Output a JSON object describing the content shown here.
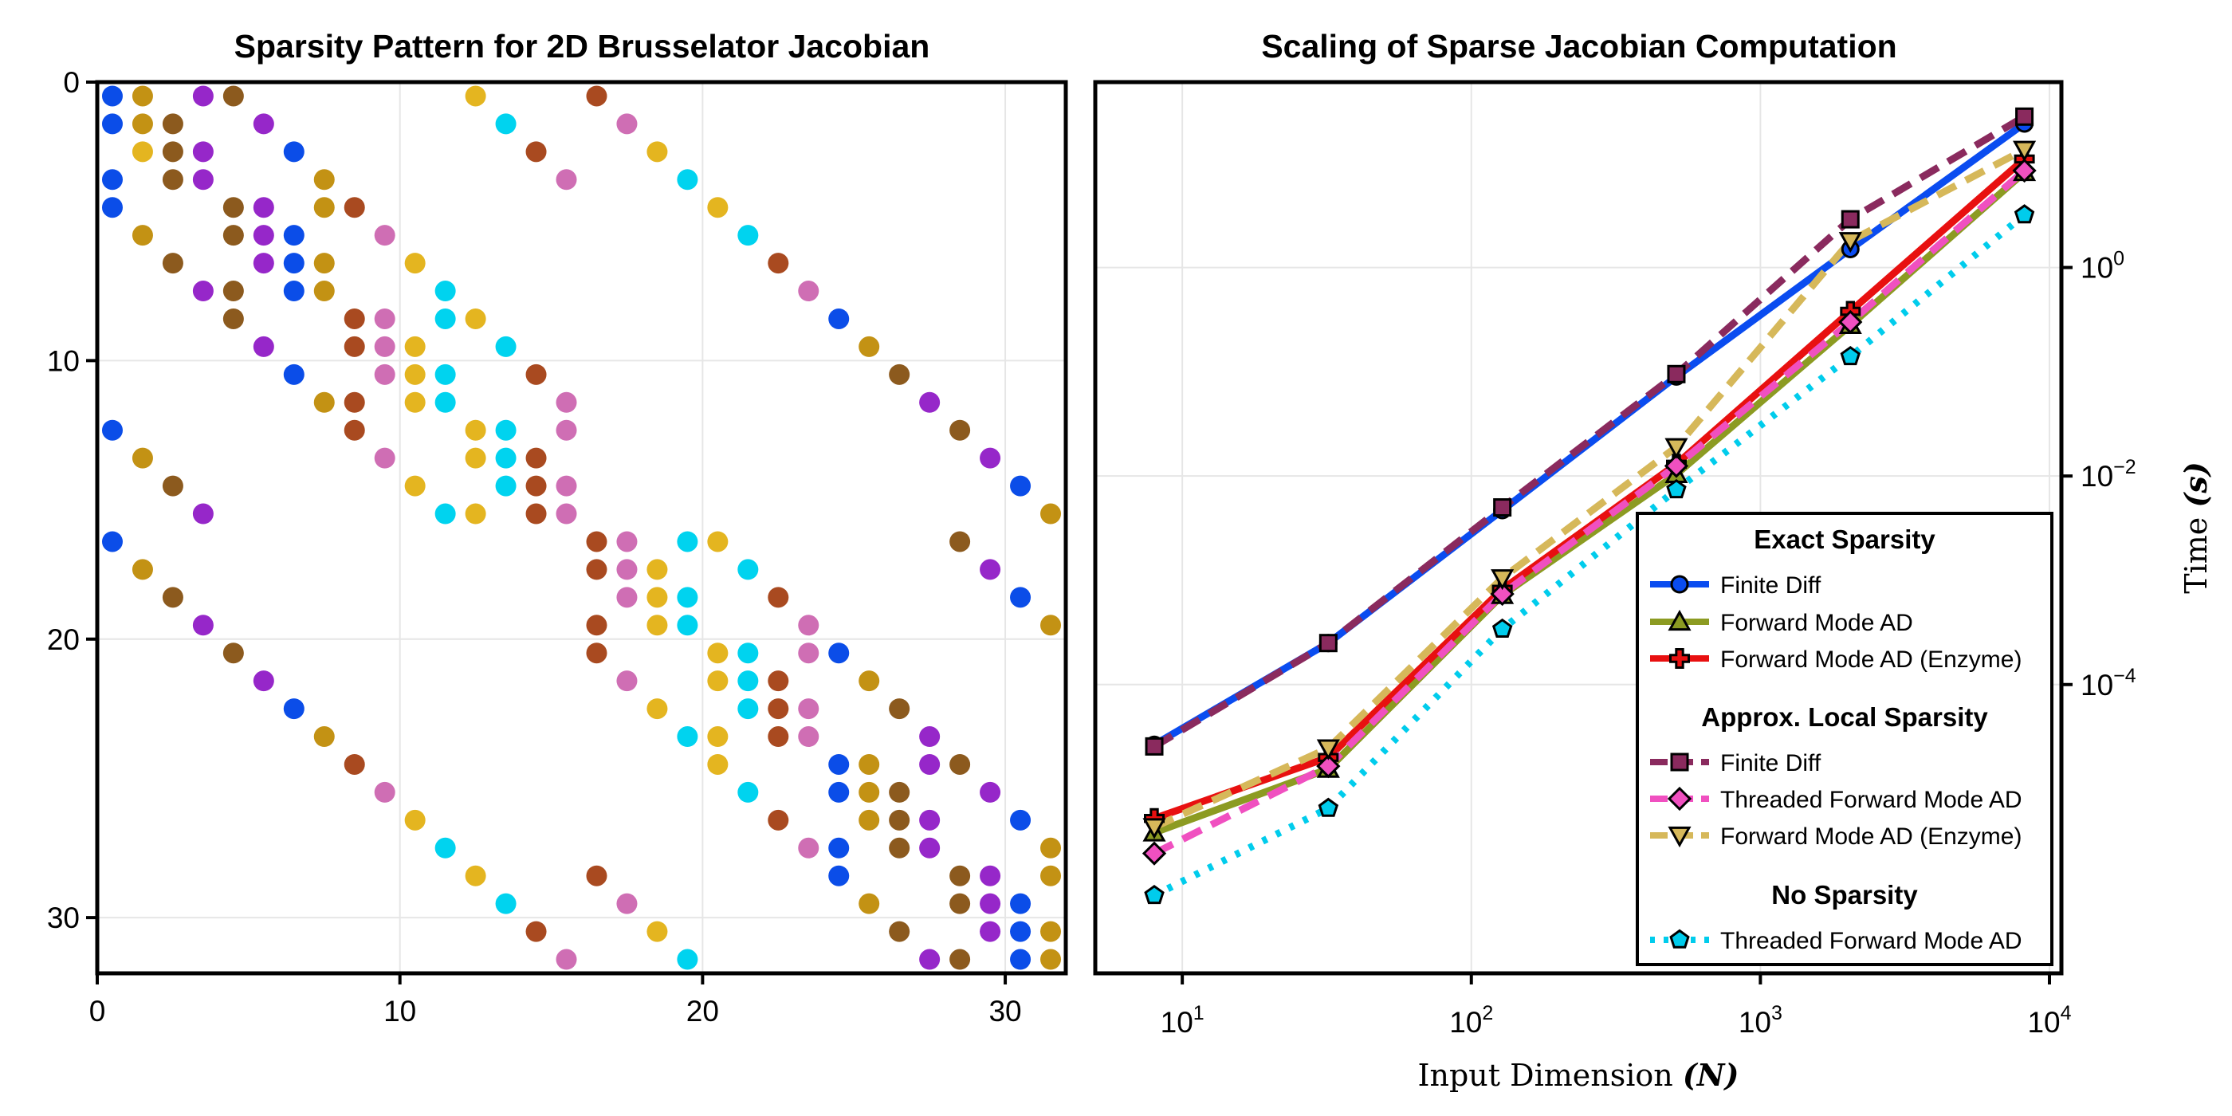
{
  "chart_data": [
    {
      "type": "scatter",
      "title": "Sparsity Pattern for 2D Brusselator Jacobian",
      "xlim": [
        0,
        32
      ],
      "ylim": [
        32,
        0
      ],
      "xticks": [
        "0",
        "10",
        "20",
        "30"
      ],
      "yticks": [
        "0",
        "10",
        "20",
        "30"
      ],
      "colors": [
        "#0b4de8",
        "#c39214",
        "#8c5a1e",
        "#9627c9",
        "#a94a20",
        "#cf6eb4",
        "#e4b520",
        "#00d3ef"
      ],
      "note": "points are [column, row, colorIndex]",
      "points": [
        [
          0,
          0,
          0
        ],
        [
          1,
          0,
          1
        ],
        [
          3,
          0,
          3
        ],
        [
          4,
          0,
          2
        ],
        [
          12,
          0,
          6
        ],
        [
          16,
          0,
          4
        ],
        [
          0,
          1,
          0
        ],
        [
          1,
          1,
          1
        ],
        [
          2,
          1,
          2
        ],
        [
          5,
          1,
          3
        ],
        [
          13,
          1,
          7
        ],
        [
          17,
          1,
          5
        ],
        [
          1,
          2,
          6
        ],
        [
          2,
          2,
          2
        ],
        [
          3,
          2,
          3
        ],
        [
          6,
          2,
          0
        ],
        [
          14,
          2,
          4
        ],
        [
          18,
          2,
          6
        ],
        [
          0,
          3,
          0
        ],
        [
          2,
          3,
          2
        ],
        [
          3,
          3,
          3
        ],
        [
          7,
          3,
          1
        ],
        [
          15,
          3,
          5
        ],
        [
          19,
          3,
          7
        ],
        [
          0,
          4,
          0
        ],
        [
          4,
          4,
          2
        ],
        [
          5,
          4,
          3
        ],
        [
          7,
          4,
          1
        ],
        [
          8,
          4,
          4
        ],
        [
          20,
          4,
          6
        ],
        [
          1,
          5,
          1
        ],
        [
          4,
          5,
          2
        ],
        [
          5,
          5,
          3
        ],
        [
          6,
          5,
          0
        ],
        [
          9,
          5,
          5
        ],
        [
          21,
          5,
          7
        ],
        [
          2,
          6,
          2
        ],
        [
          5,
          6,
          3
        ],
        [
          6,
          6,
          0
        ],
        [
          7,
          6,
          1
        ],
        [
          10,
          6,
          6
        ],
        [
          22,
          6,
          4
        ],
        [
          3,
          7,
          3
        ],
        [
          4,
          7,
          2
        ],
        [
          6,
          7,
          0
        ],
        [
          7,
          7,
          1
        ],
        [
          11,
          7,
          7
        ],
        [
          23,
          7,
          5
        ],
        [
          4,
          8,
          2
        ],
        [
          8,
          8,
          4
        ],
        [
          9,
          8,
          5
        ],
        [
          11,
          8,
          7
        ],
        [
          12,
          8,
          6
        ],
        [
          24,
          8,
          0
        ],
        [
          5,
          9,
          3
        ],
        [
          8,
          9,
          4
        ],
        [
          9,
          9,
          5
        ],
        [
          10,
          9,
          6
        ],
        [
          13,
          9,
          7
        ],
        [
          25,
          9,
          1
        ],
        [
          6,
          10,
          0
        ],
        [
          9,
          10,
          5
        ],
        [
          10,
          10,
          6
        ],
        [
          11,
          10,
          7
        ],
        [
          14,
          10,
          4
        ],
        [
          26,
          10,
          2
        ],
        [
          7,
          11,
          1
        ],
        [
          8,
          11,
          4
        ],
        [
          10,
          11,
          6
        ],
        [
          11,
          11,
          7
        ],
        [
          15,
          11,
          5
        ],
        [
          27,
          11,
          3
        ],
        [
          0,
          12,
          0
        ],
        [
          8,
          12,
          4
        ],
        [
          12,
          12,
          6
        ],
        [
          13,
          12,
          7
        ],
        [
          15,
          12,
          5
        ],
        [
          28,
          12,
          2
        ],
        [
          1,
          13,
          1
        ],
        [
          9,
          13,
          5
        ],
        [
          12,
          13,
          6
        ],
        [
          13,
          13,
          7
        ],
        [
          14,
          13,
          4
        ],
        [
          29,
          13,
          3
        ],
        [
          2,
          14,
          2
        ],
        [
          10,
          14,
          6
        ],
        [
          13,
          14,
          7
        ],
        [
          14,
          14,
          4
        ],
        [
          15,
          14,
          5
        ],
        [
          30,
          14,
          0
        ],
        [
          3,
          15,
          3
        ],
        [
          11,
          15,
          7
        ],
        [
          12,
          15,
          6
        ],
        [
          14,
          15,
          4
        ],
        [
          15,
          15,
          5
        ],
        [
          31,
          15,
          1
        ],
        [
          0,
          16,
          0
        ],
        [
          16,
          16,
          4
        ],
        [
          17,
          16,
          5
        ],
        [
          19,
          16,
          7
        ],
        [
          20,
          16,
          6
        ],
        [
          28,
          16,
          2
        ],
        [
          1,
          17,
          1
        ],
        [
          16,
          17,
          4
        ],
        [
          17,
          17,
          5
        ],
        [
          18,
          17,
          6
        ],
        [
          21,
          17,
          7
        ],
        [
          29,
          17,
          3
        ],
        [
          2,
          18,
          2
        ],
        [
          17,
          18,
          5
        ],
        [
          18,
          18,
          6
        ],
        [
          19,
          18,
          7
        ],
        [
          22,
          18,
          4
        ],
        [
          30,
          18,
          0
        ],
        [
          3,
          19,
          3
        ],
        [
          16,
          19,
          4
        ],
        [
          18,
          19,
          6
        ],
        [
          19,
          19,
          7
        ],
        [
          23,
          19,
          5
        ],
        [
          31,
          19,
          1
        ],
        [
          4,
          20,
          2
        ],
        [
          16,
          20,
          4
        ],
        [
          20,
          20,
          6
        ],
        [
          21,
          20,
          7
        ],
        [
          23,
          20,
          5
        ],
        [
          24,
          20,
          0
        ],
        [
          5,
          21,
          3
        ],
        [
          17,
          21,
          5
        ],
        [
          20,
          21,
          6
        ],
        [
          21,
          21,
          7
        ],
        [
          22,
          21,
          4
        ],
        [
          25,
          21,
          1
        ],
        [
          6,
          22,
          0
        ],
        [
          18,
          22,
          6
        ],
        [
          21,
          22,
          7
        ],
        [
          22,
          22,
          4
        ],
        [
          23,
          22,
          5
        ],
        [
          26,
          22,
          2
        ],
        [
          7,
          23,
          1
        ],
        [
          19,
          23,
          7
        ],
        [
          20,
          23,
          6
        ],
        [
          22,
          23,
          4
        ],
        [
          23,
          23,
          5
        ],
        [
          27,
          23,
          3
        ],
        [
          8,
          24,
          4
        ],
        [
          20,
          24,
          6
        ],
        [
          24,
          24,
          0
        ],
        [
          25,
          24,
          1
        ],
        [
          27,
          24,
          3
        ],
        [
          28,
          24,
          2
        ],
        [
          9,
          25,
          5
        ],
        [
          21,
          25,
          7
        ],
        [
          24,
          25,
          0
        ],
        [
          25,
          25,
          1
        ],
        [
          26,
          25,
          2
        ],
        [
          29,
          25,
          3
        ],
        [
          10,
          26,
          6
        ],
        [
          22,
          26,
          4
        ],
        [
          25,
          26,
          1
        ],
        [
          26,
          26,
          2
        ],
        [
          27,
          26,
          3
        ],
        [
          30,
          26,
          0
        ],
        [
          11,
          27,
          7
        ],
        [
          23,
          27,
          5
        ],
        [
          24,
          27,
          0
        ],
        [
          26,
          27,
          2
        ],
        [
          27,
          27,
          3
        ],
        [
          31,
          27,
          1
        ],
        [
          12,
          28,
          6
        ],
        [
          16,
          28,
          4
        ],
        [
          24,
          28,
          0
        ],
        [
          28,
          28,
          2
        ],
        [
          29,
          28,
          3
        ],
        [
          31,
          28,
          1
        ],
        [
          13,
          29,
          7
        ],
        [
          17,
          29,
          5
        ],
        [
          25,
          29,
          1
        ],
        [
          28,
          29,
          2
        ],
        [
          29,
          29,
          3
        ],
        [
          30,
          29,
          0
        ],
        [
          14,
          30,
          4
        ],
        [
          18,
          30,
          6
        ],
        [
          26,
          30,
          2
        ],
        [
          29,
          30,
          3
        ],
        [
          30,
          30,
          0
        ],
        [
          31,
          30,
          1
        ],
        [
          15,
          31,
          5
        ],
        [
          19,
          31,
          7
        ],
        [
          27,
          31,
          3
        ],
        [
          28,
          31,
          2
        ],
        [
          30,
          31,
          0
        ],
        [
          31,
          31,
          1
        ]
      ]
    },
    {
      "type": "line",
      "title": "Scaling of Sparse Jacobian Computation",
      "xscale": "log",
      "yscale": "log",
      "xlim": [
        5,
        11000
      ],
      "ylim": [
        1.7e-07,
        60
      ],
      "xlabel": "Input Dimension",
      "xlabel_var": "(N)",
      "ylabel": "Time",
      "ylabel_var": "(s)",
      "xticks": [
        {
          "base": "10",
          "exp": "1"
        },
        {
          "base": "10",
          "exp": "2"
        },
        {
          "base": "10",
          "exp": "3"
        },
        {
          "base": "10",
          "exp": "4"
        }
      ],
      "yticks": [
        {
          "base": "10",
          "exp": "−4"
        },
        {
          "base": "10",
          "exp": "−2"
        },
        {
          "base": "10",
          "exp": "0"
        }
      ],
      "x": [
        8,
        32,
        128,
        512,
        2048,
        8192
      ],
      "series": [
        {
          "name": "Finite Diff",
          "group": 0,
          "color": "#0a4cf0",
          "dash": "solid",
          "marker": "circle",
          "values": [
            2.65e-05,
            0.00025,
            0.0047,
            0.09,
            1.5,
            24
          ]
        },
        {
          "name": "Forward Mode AD",
          "group": 0,
          "color": "#8c9b22",
          "dash": "solid",
          "marker": "triangle",
          "values": [
            3.8e-06,
            1.55e-05,
            0.00072,
            0.0104,
            0.28,
            8.2
          ]
        },
        {
          "name": "Forward Mode AD (Enzyme)",
          "group": 0,
          "color": "#e81010",
          "dash": "solid",
          "marker": "cross",
          "values": [
            5.2e-06,
            2e-05,
            0.00082,
            0.013,
            0.38,
            11
          ]
        },
        {
          "name": "Finite Diff",
          "group": 1,
          "color": "#8a2a5e",
          "dash": "dashed",
          "marker": "square",
          "values": [
            2.55e-05,
            0.00025,
            0.005,
            0.095,
            2.9,
            28
          ]
        },
        {
          "name": "Threaded Forward Mode AD",
          "group": 1,
          "color": "#f050c0",
          "dash": "dashed",
          "marker": "diamond",
          "values": [
            2.4e-06,
            1.65e-05,
            0.00074,
            0.0125,
            0.3,
            8.5
          ]
        },
        {
          "name": "Forward Mode AD (Enzyme)",
          "group": 1,
          "color": "#d6b85a",
          "dash": "dashed",
          "marker": "triangle-down",
          "values": [
            4.3e-06,
            2.45e-05,
            0.00105,
            0.019,
            1.8,
            13.5
          ]
        },
        {
          "name": "Threaded Forward Mode AD",
          "group": 2,
          "color": "#00ccec",
          "dash": "dotted",
          "marker": "pentagon",
          "values": [
            9.5e-07,
            6.5e-06,
            0.00034,
            0.0074,
            0.14,
            3.2
          ]
        }
      ],
      "legend": {
        "placement": "bottom-right",
        "groups": [
          "Exact Sparsity",
          "Approx. Local Sparsity",
          "No Sparsity"
        ]
      }
    }
  ]
}
